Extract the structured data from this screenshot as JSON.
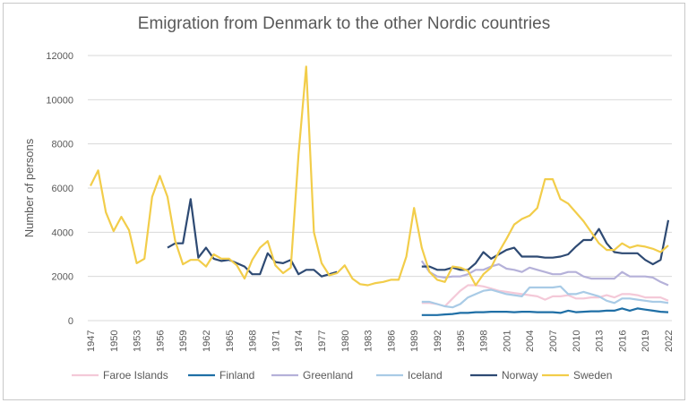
{
  "chart_data": {
    "type": "line",
    "title": "Emigration from Denmark to the other Nordic countries",
    "ylabel": "Number of persons",
    "xlabel": "",
    "ylim": [
      0,
      12000
    ],
    "yticks": [
      0,
      2000,
      4000,
      6000,
      8000,
      10000,
      12000
    ],
    "xlim": [
      1947,
      2022
    ],
    "xtick_step": 3,
    "grid": true,
    "legend": "bottom",
    "series": [
      {
        "name": "Faroe Islands",
        "color": "#f4c9d8",
        "start": 1990,
        "values": [
          800,
          800,
          750,
          650,
          1000,
          1350,
          1600,
          1600,
          1550,
          1450,
          1350,
          1300,
          1250,
          1200,
          1150,
          1100,
          950,
          1100,
          1100,
          1150,
          1000,
          1000,
          1050,
          1050,
          1150,
          1050,
          1200,
          1200,
          1150,
          1050,
          1050,
          1050,
          900
        ]
      },
      {
        "name": "Finland",
        "color": "#1f6fa6",
        "start": 1990,
        "values": [
          250,
          250,
          250,
          280,
          300,
          350,
          350,
          380,
          380,
          400,
          400,
          400,
          380,
          400,
          400,
          380,
          380,
          380,
          350,
          450,
          380,
          400,
          420,
          420,
          450,
          450,
          550,
          450,
          550,
          500,
          450,
          400,
          380
        ]
      },
      {
        "name": "Greenland",
        "color": "#b5b1d9",
        "start": 1990,
        "values": [
          2700,
          2200,
          2000,
          1950,
          2000,
          2000,
          2100,
          2300,
          2300,
          2450,
          2550,
          2350,
          2300,
          2200,
          2400,
          2300,
          2200,
          2100,
          2100,
          2200,
          2200,
          2000,
          1900,
          1900,
          1900,
          1900,
          2200,
          2000,
          2000,
          2000,
          1950,
          1750,
          1600
        ]
      },
      {
        "name": "Iceland",
        "color": "#a9cbe6",
        "start": 1990,
        "values": [
          850,
          850,
          750,
          650,
          600,
          750,
          1050,
          1200,
          1350,
          1400,
          1300,
          1200,
          1150,
          1100,
          1500,
          1500,
          1500,
          1500,
          1550,
          1200,
          1200,
          1300,
          1200,
          1100,
          900,
          800,
          1000,
          1000,
          950,
          900,
          850,
          850,
          800
        ]
      },
      {
        "name": "Norway",
        "color": "#2e4a73",
        "start": 1957,
        "values": [
          3300,
          3500,
          3500,
          5500,
          2850,
          3300,
          2800,
          2700,
          2750,
          2600,
          2450,
          2100,
          2100,
          3050,
          2650,
          2600,
          2750,
          2100,
          2300,
          2300,
          2000,
          2100,
          2200,
          null,
          null,
          null,
          null,
          null,
          null,
          null,
          null,
          null,
          null,
          2450,
          2450,
          2300,
          2300,
          2400,
          2300,
          2300,
          2600,
          3100,
          2800,
          3000,
          3200,
          3300,
          2900,
          2900,
          2900,
          2850,
          2850,
          2900,
          3000,
          3350,
          3650,
          3650,
          4150,
          3500,
          3100,
          3050,
          3050,
          3050,
          2750,
          2550,
          2750,
          4550
        ]
      },
      {
        "name": "Sweden",
        "color": "#f2cd4a",
        "start": 1947,
        "values": [
          6100,
          6800,
          4900,
          4050,
          4700,
          4100,
          2600,
          2800,
          5600,
          6550,
          5600,
          3600,
          2550,
          2750,
          2750,
          2450,
          3000,
          2800,
          2800,
          2500,
          1900,
          2750,
          3300,
          3600,
          2500,
          2150,
          2400,
          7500,
          11500,
          4000,
          2600,
          2050,
          2150,
          2500,
          1900,
          1650,
          1600,
          1700,
          1750,
          1850,
          1850,
          2900,
          5100,
          3300,
          2200,
          1850,
          1750,
          2450,
          2400,
          2250,
          1600,
          2100,
          2400,
          3100,
          3700,
          4350,
          4600,
          4750,
          5100,
          6400,
          6400,
          5500,
          5300,
          4900,
          4500,
          4000,
          3500,
          3200,
          3200,
          3500,
          3300,
          3400,
          3350,
          3250,
          3100,
          3400
        ]
      }
    ]
  }
}
